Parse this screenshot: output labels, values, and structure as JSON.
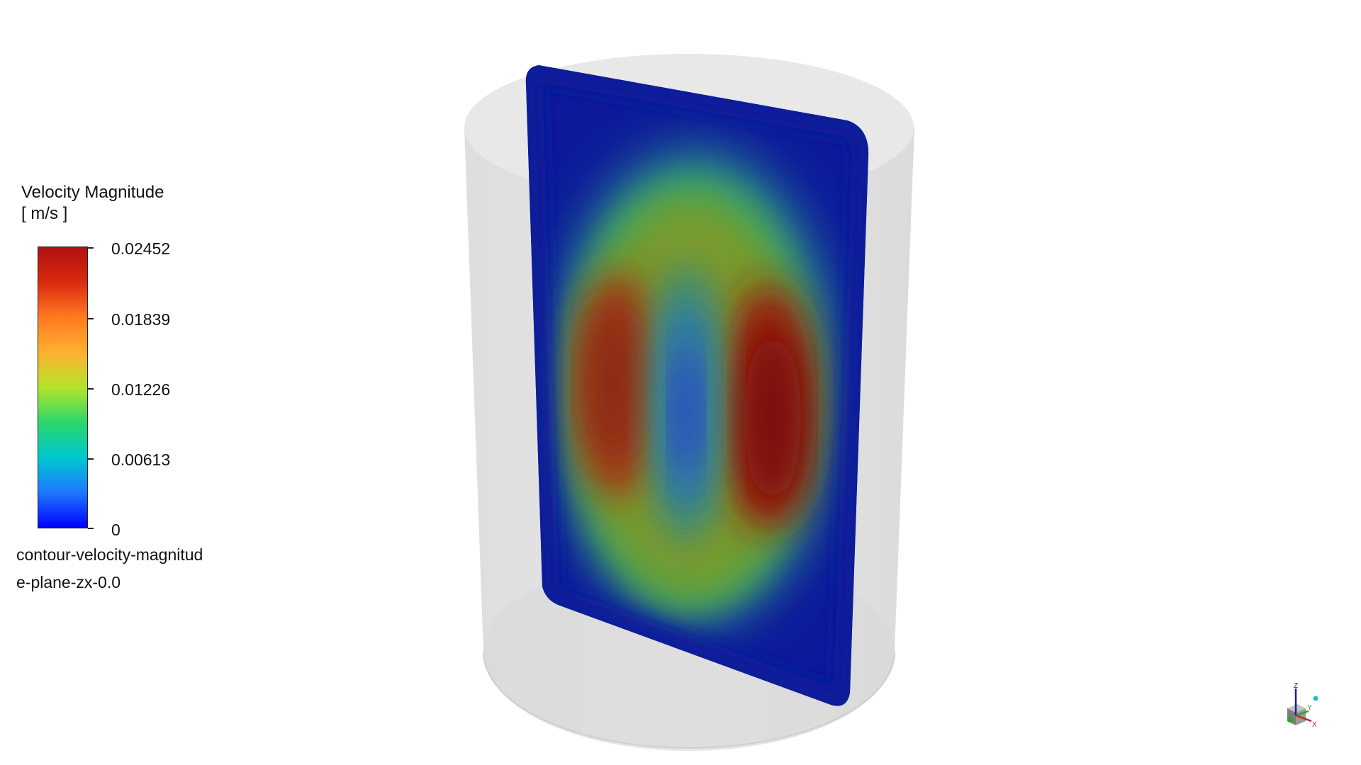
{
  "legend": {
    "title": "Velocity Magnitude",
    "units": "[ m/s ]",
    "ticks": [
      "0.02452",
      "0.01839",
      "0.01226",
      "0.00613",
      "0"
    ],
    "colormap": [
      "#0000ff",
      "#1e78ff",
      "#00c8d0",
      "#2bd66a",
      "#b4e42a",
      "#ffb030",
      "#ff7a1e",
      "#d92a10",
      "#b01010"
    ]
  },
  "caption": {
    "line1": "contour-velocity-magnitud",
    "line2": "e-plane-zx-0.0"
  },
  "triad": {
    "z_label": "Z",
    "y_label": "Y",
    "x_label": "X"
  }
}
